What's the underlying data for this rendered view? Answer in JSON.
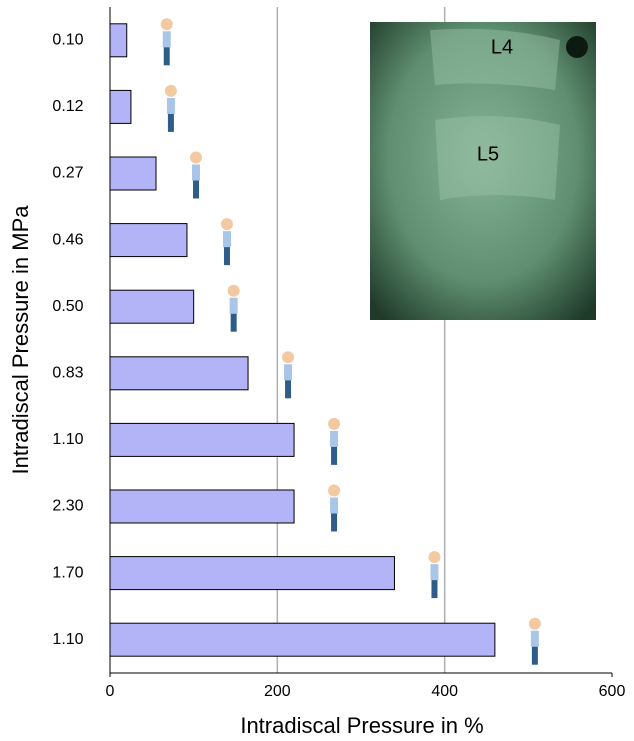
{
  "chart_data": {
    "type": "barh",
    "xlabel": "Intradiscal Pressure in %",
    "ylabel": "Intradiscal Pressure in MPa",
    "categories": [
      "0.10",
      "0.12",
      "0.27",
      "0.46",
      "0.50",
      "0.83",
      "1.10",
      "2.30",
      "1.70",
      "1.10"
    ],
    "values": [
      20,
      25,
      55,
      92,
      100,
      165,
      220,
      220,
      340,
      460
    ],
    "color": "#b3b3f7",
    "xlim": [
      0,
      600
    ],
    "xticks": [
      0,
      200,
      400,
      600
    ],
    "grid": true,
    "annotations": [
      "L4",
      "L5"
    ]
  }
}
